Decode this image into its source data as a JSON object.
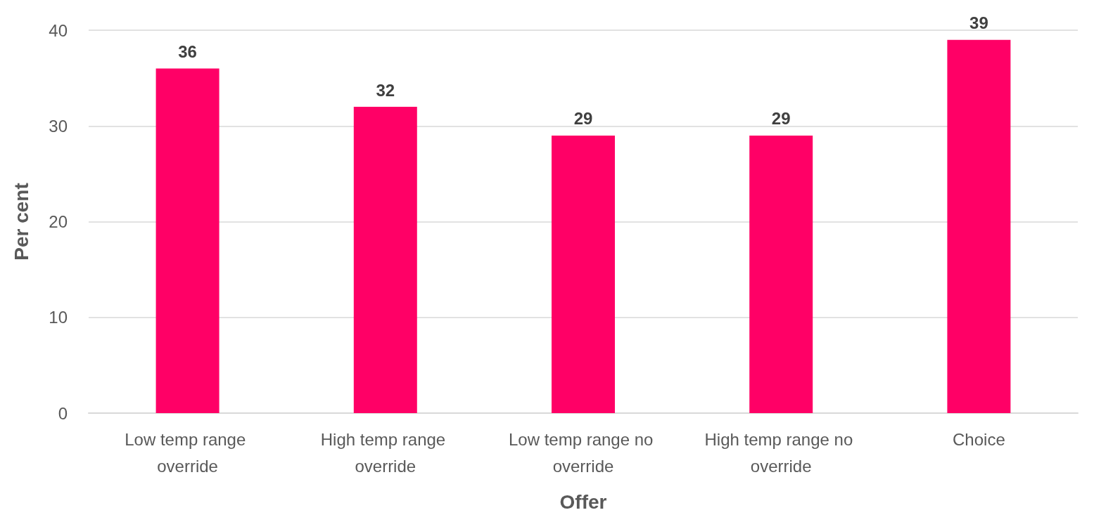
{
  "chart_data": {
    "type": "bar",
    "xlabel": "Offer",
    "ylabel": "Per cent",
    "categories": [
      "Low temp range override",
      "High temp range override",
      "Low temp range no override",
      "High temp range no override",
      "Choice"
    ],
    "values": [
      36,
      32,
      29,
      29,
      39
    ],
    "color": "#ff0066",
    "ylim": [
      0,
      40
    ],
    "yticks": [
      0,
      10,
      20,
      30,
      40
    ],
    "grid": "y",
    "data_labels": true
  }
}
